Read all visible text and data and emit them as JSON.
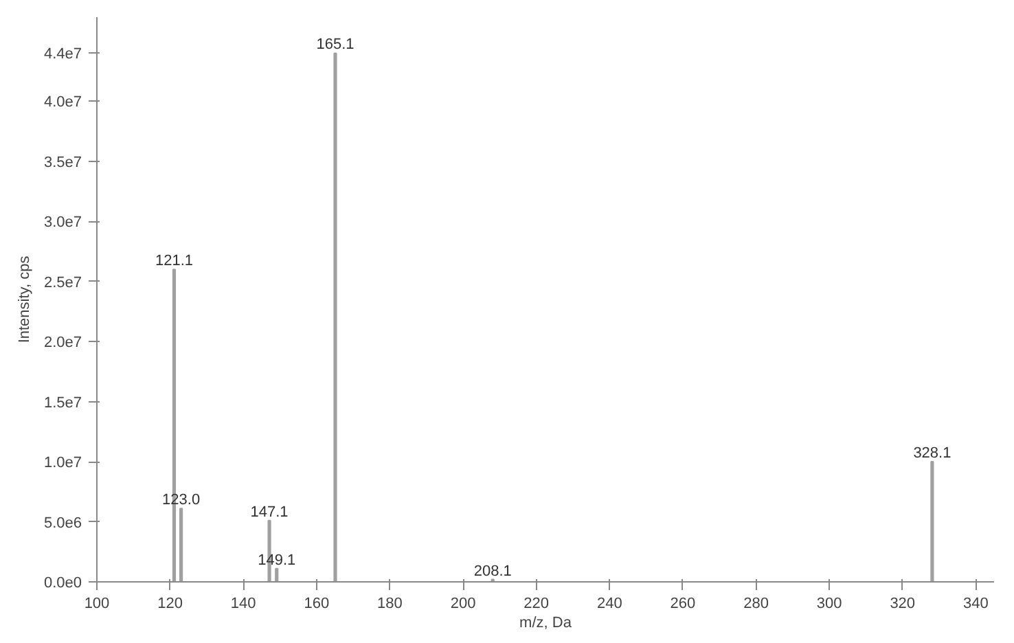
{
  "chart_data": {
    "type": "bar",
    "xlabel": "m/z, Da",
    "ylabel": "Intensity, cps",
    "x": [
      121.1,
      123.0,
      147.1,
      149.1,
      165.1,
      208.1,
      328.1
    ],
    "values": [
      26000000,
      6100000,
      5100000,
      1100000,
      44000000,
      200000,
      10000000
    ],
    "annotations": [
      {
        "text": "121.1",
        "x": 121.1,
        "y": 26000000
      },
      {
        "text": "123.0",
        "x": 123.0,
        "y": 6100000
      },
      {
        "text": "147.1",
        "x": 147.1,
        "y": 5100000
      },
      {
        "text": "149.1",
        "x": 149.1,
        "y": 1100000
      },
      {
        "text": "165.1",
        "x": 165.1,
        "y": 44000000
      },
      {
        "text": "208.1",
        "x": 208.1,
        "y": 200000
      },
      {
        "text": "328.1",
        "x": 328.1,
        "y": 10000000
      }
    ],
    "color": "#a0a0a0",
    "xlim": [
      100,
      345
    ],
    "xticks": [
      100,
      120,
      140,
      160,
      180,
      200,
      220,
      240,
      260,
      280,
      300,
      320,
      340
    ],
    "ylim": [
      0,
      47000000
    ],
    "yticks": [
      {
        "value": 0,
        "label": "0.0e0"
      },
      {
        "value": 5000000,
        "label": "5.0e6"
      },
      {
        "value": 10000000,
        "label": "1.0e7"
      },
      {
        "value": 15000000,
        "label": "1.5e7"
      },
      {
        "value": 20000000,
        "label": "2.0e7"
      },
      {
        "value": 25000000,
        "label": "2.5e7"
      },
      {
        "value": 30000000,
        "label": "3.0e7"
      },
      {
        "value": 35000000,
        "label": "3.5e7"
      },
      {
        "value": 40000000,
        "label": "4.0e7"
      },
      {
        "value": 44000000,
        "label": "4.4e7"
      }
    ],
    "grid": false
  }
}
